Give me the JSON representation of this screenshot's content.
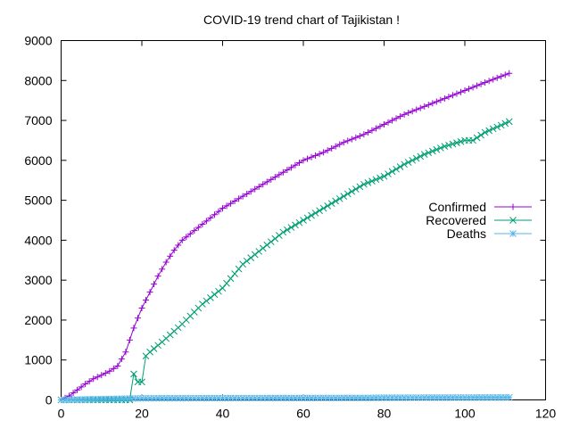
{
  "chart_data": {
    "type": "line",
    "title": "COVID-19 trend chart of Tajikistan !",
    "xlabel": "",
    "ylabel": "",
    "xlim": [
      0,
      120
    ],
    "ylim": [
      0,
      9000
    ],
    "x_ticks": [
      0,
      20,
      40,
      60,
      80,
      100,
      120
    ],
    "y_ticks": [
      0,
      1000,
      2000,
      3000,
      4000,
      5000,
      6000,
      7000,
      8000,
      9000
    ],
    "grid": false,
    "legend": "right-center",
    "series": [
      {
        "name": "Confirmed",
        "color": "#9400d3",
        "marker": "plus",
        "x": [
          0,
          2,
          4,
          6,
          8,
          10,
          12,
          14,
          16,
          18,
          20,
          22,
          24,
          26,
          28,
          30,
          35,
          40,
          45,
          50,
          55,
          60,
          65,
          70,
          75,
          80,
          85,
          90,
          95,
          100,
          105,
          111
        ],
        "y": [
          0,
          100,
          250,
          400,
          530,
          620,
          720,
          850,
          1200,
          1800,
          2300,
          2700,
          3100,
          3450,
          3750,
          4000,
          4400,
          4800,
          5100,
          5400,
          5700,
          6000,
          6200,
          6450,
          6650,
          6900,
          7150,
          7350,
          7550,
          7750,
          7950,
          8180
        ]
      },
      {
        "name": "Recovered",
        "color": "#009e73",
        "marker": "cross",
        "x": [
          0,
          5,
          10,
          15,
          17,
          18,
          19,
          20,
          21,
          22,
          25,
          30,
          35,
          40,
          45,
          50,
          55,
          60,
          65,
          70,
          75,
          80,
          85,
          90,
          95,
          100,
          102,
          105,
          111
        ],
        "y": [
          0,
          0,
          0,
          0,
          0,
          650,
          450,
          450,
          1100,
          1200,
          1450,
          1900,
          2400,
          2800,
          3400,
          3800,
          4200,
          4500,
          4800,
          5100,
          5400,
          5600,
          5900,
          6150,
          6350,
          6500,
          6500,
          6700,
          6970
        ]
      },
      {
        "name": "Deaths",
        "color": "#56b4e9",
        "marker": "star",
        "x": [
          0,
          20,
          40,
          60,
          75,
          80,
          90,
          100,
          111
        ],
        "y": [
          0,
          40,
          45,
          48,
          50,
          55,
          58,
          60,
          62
        ]
      }
    ]
  }
}
